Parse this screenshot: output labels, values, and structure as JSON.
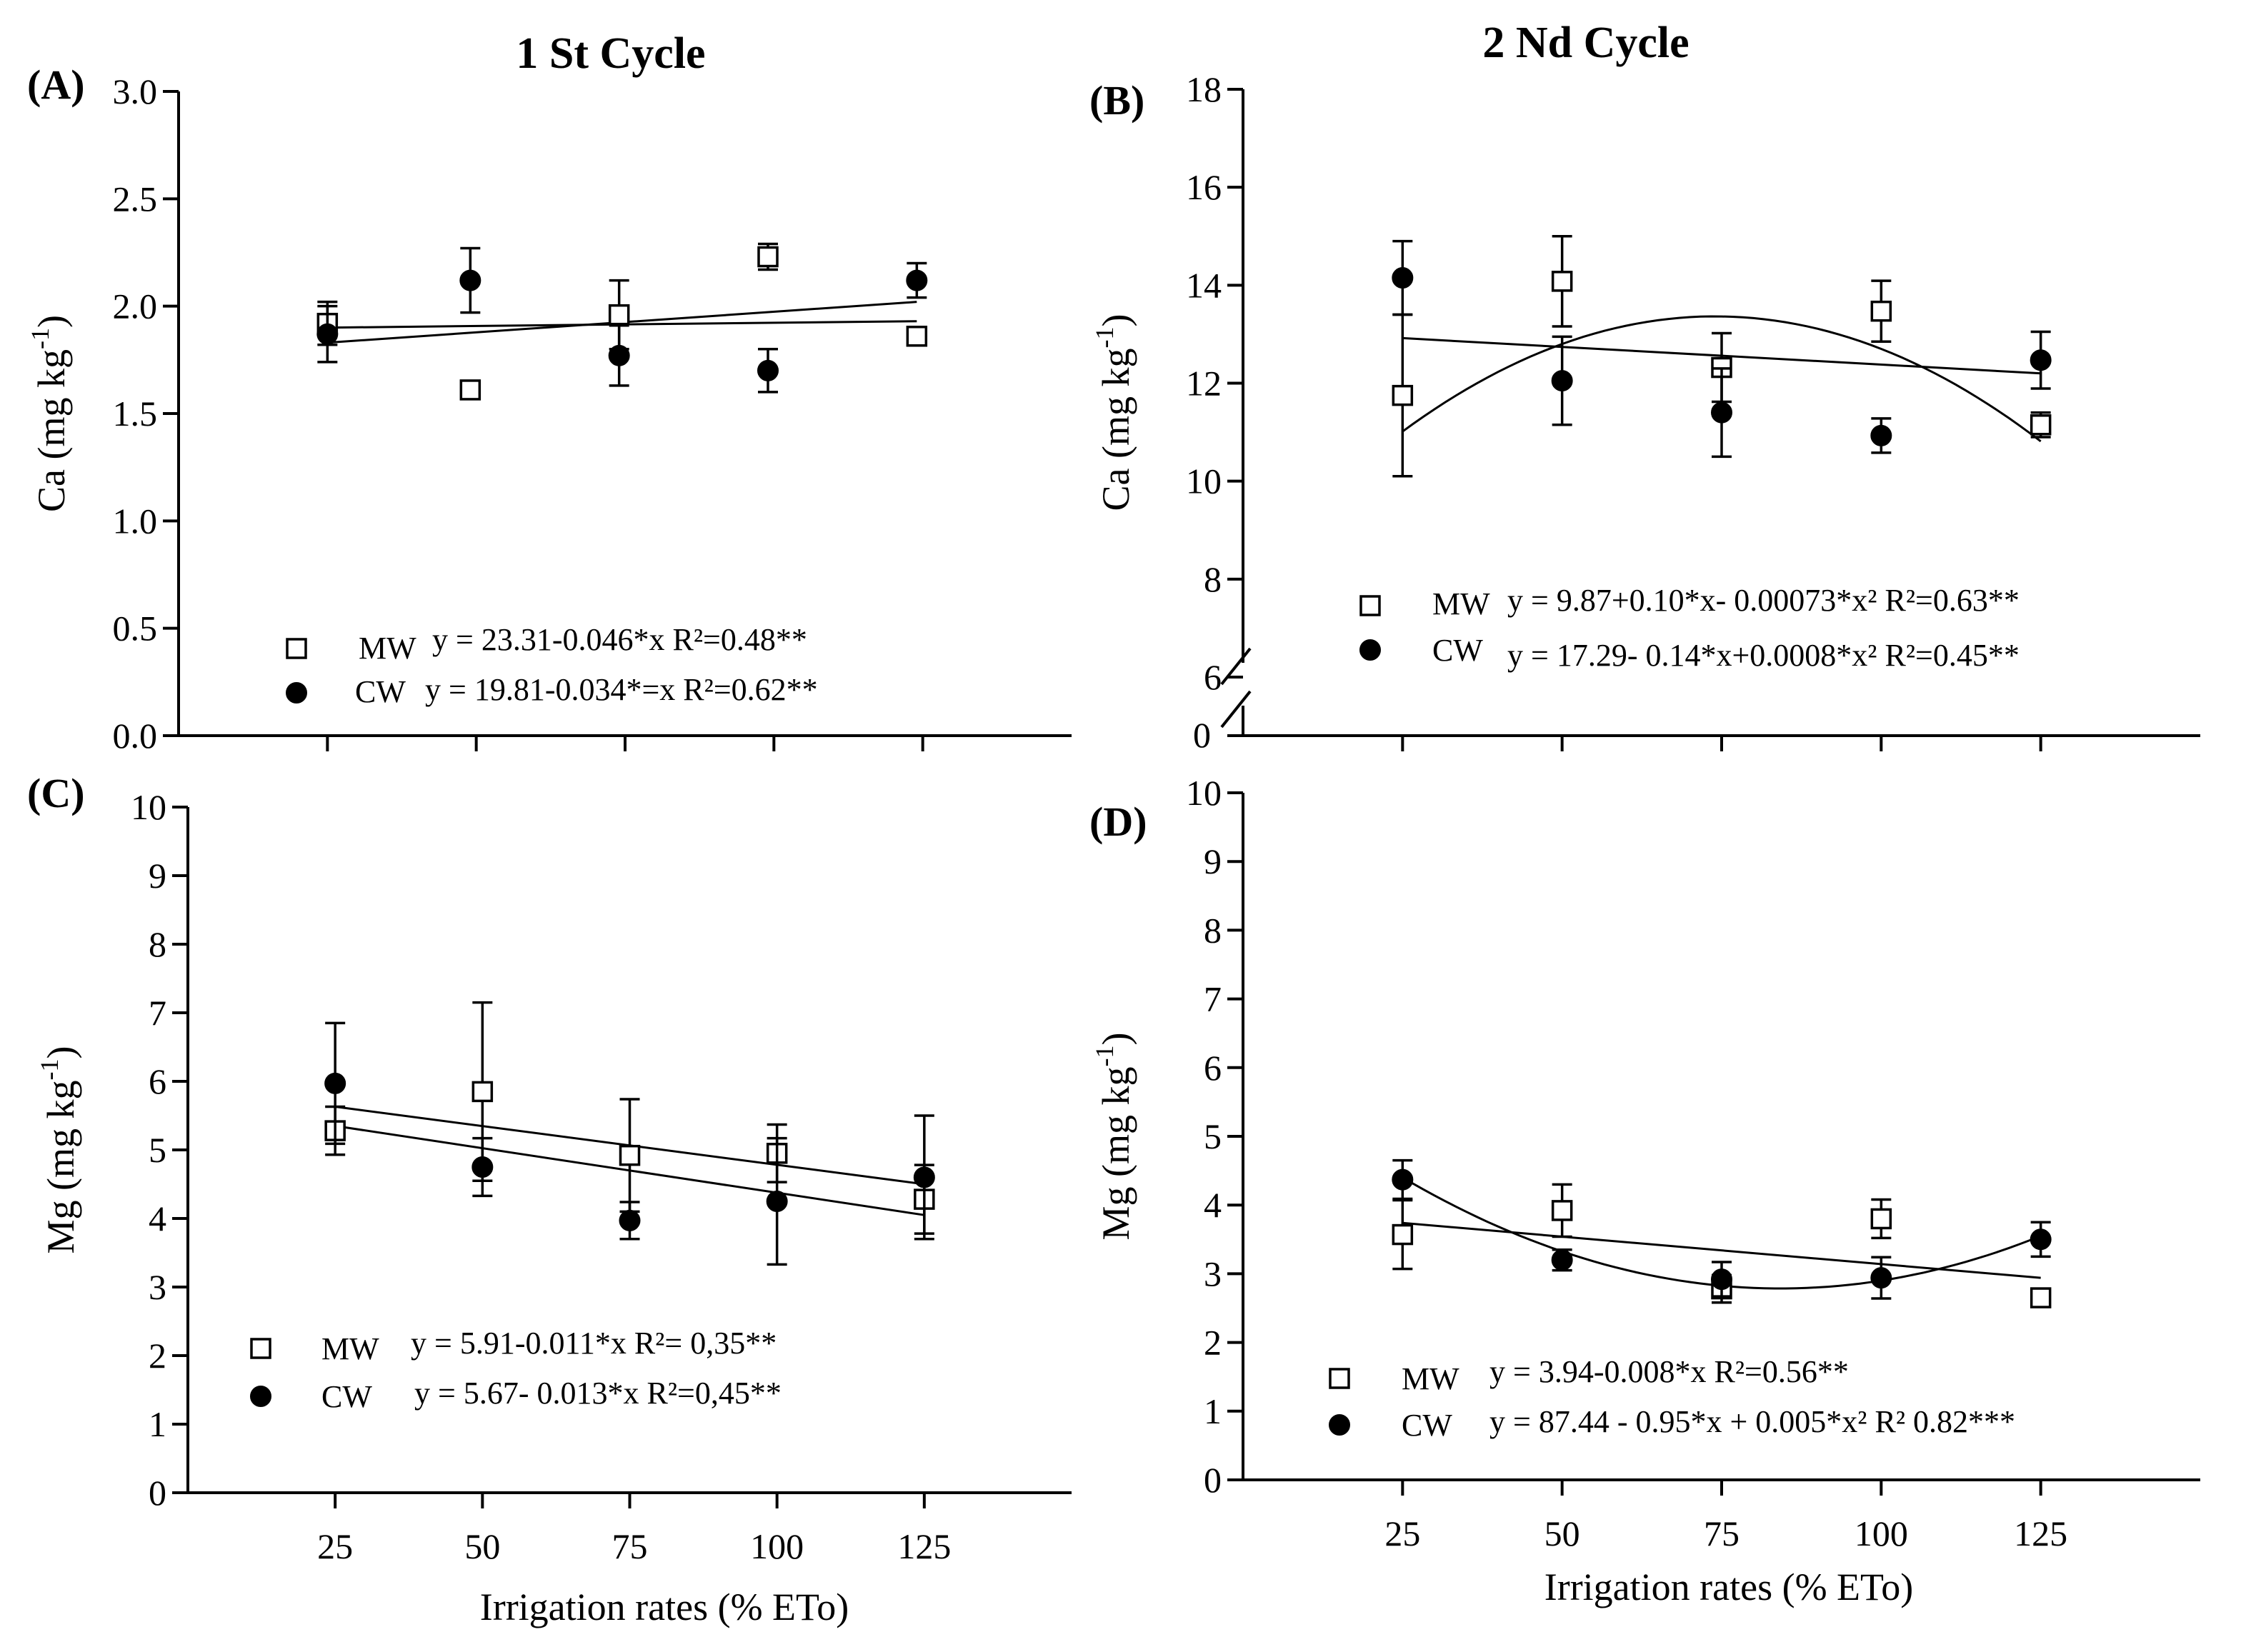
{
  "chart_data": [
    {
      "type": "scatter",
      "panel": "A",
      "panel_label": "(A)",
      "title": "1 St Cycle",
      "ylabel": "Ca (mg kg",
      "ylabel_sup": "-1",
      "ylabel_close": ")",
      "xlabel": "",
      "ylim": [
        0,
        3
      ],
      "xlim": [
        0,
        150
      ],
      "yticks": [
        0,
        0.5,
        1.0,
        1.5,
        2.0,
        2.5,
        3.0
      ],
      "ytick_labels": [
        "0.0",
        "0.5",
        "1.0",
        "1.5",
        "2.0",
        "2.5",
        "3.0"
      ],
      "xticks": [
        25,
        50,
        75,
        100,
        125
      ],
      "xtick_labels": [],
      "series": [
        {
          "name": "MW",
          "marker": "open-square",
          "equation": "y = 23.31-0.046*x R²=0.48**",
          "points": [
            {
              "x": 25,
              "y": 1.92,
              "err": 0.1
            },
            {
              "x": 49,
              "y": 1.61,
              "err": 0
            },
            {
              "x": 74,
              "y": 1.96,
              "err": 0.16
            },
            {
              "x": 99,
              "y": 2.23,
              "err": 0.06
            },
            {
              "x": 124,
              "y": 1.86,
              "err": 0
            }
          ],
          "fit": {
            "kind": "linear",
            "x0": 25,
            "y0": 1.83,
            "x1": 124,
            "y1": 2.02
          }
        },
        {
          "name": "CW",
          "marker": "filled-circle",
          "equation": "y  = 19.81-0.034*=x R²=0.62**",
          "points": [
            {
              "x": 25,
              "y": 1.87,
              "err": 0.13
            },
            {
              "x": 49,
              "y": 2.12,
              "err": 0.15
            },
            {
              "x": 74,
              "y": 1.77,
              "err": 0.14
            },
            {
              "x": 99,
              "y": 1.7,
              "err": 0.1
            },
            {
              "x": 124,
              "y": 2.12,
              "err": 0.08
            }
          ],
          "fit": {
            "kind": "linear",
            "x0": 25,
            "y0": 1.9,
            "x1": 124,
            "y1": 1.93
          }
        }
      ]
    },
    {
      "type": "scatter",
      "panel": "B",
      "panel_label": "(B)",
      "title": "2 Nd Cycle",
      "ylabel": "Ca (mg kg",
      "ylabel_sup": "-1",
      "ylabel_close": ")",
      "xlabel": "",
      "ylim": [
        6,
        18
      ],
      "axis_break": {
        "below": 6,
        "base_label": "0"
      },
      "xlim": [
        0,
        150
      ],
      "yticks": [
        6,
        8,
        10,
        12,
        14,
        16,
        18
      ],
      "ytick_labels": [
        "6",
        "8",
        "10",
        "12",
        "14",
        "16",
        "18"
      ],
      "xticks": [
        25,
        50,
        75,
        100,
        125
      ],
      "xtick_labels": [],
      "series": [
        {
          "name": "MW",
          "marker": "open-square",
          "equation": "y = 9.87+0.10*x- 0.00073*x² R²=0.63**",
          "points": [
            {
              "x": 25,
              "y": 11.75,
              "err": 1.65
            },
            {
              "x": 50,
              "y": 14.08,
              "err": 0.92
            },
            {
              "x": 75,
              "y": 12.32,
              "err": 0.7
            },
            {
              "x": 100,
              "y": 13.47,
              "err": 0.62
            },
            {
              "x": 125,
              "y": 11.15,
              "err": 0.25
            }
          ],
          "fit": {
            "kind": "quadratic",
            "a": 8.0,
            "b": 0.145,
            "c": -0.00098,
            "x0": 25,
            "x1": 125
          }
        },
        {
          "name": "CW",
          "marker": "filled-circle",
          "equation": "y = 17.29- 0.14*x+0.0008*x² R²=0.45**",
          "points": [
            {
              "x": 25,
              "y": 14.15,
              "err": 0.75
            },
            {
              "x": 50,
              "y": 12.05,
              "err": 0.9
            },
            {
              "x": 75,
              "y": 11.4,
              "err": 0.9
            },
            {
              "x": 100,
              "y": 10.93,
              "err": 0.35
            },
            {
              "x": 125,
              "y": 12.47,
              "err": 0.58
            }
          ],
          "fit": {
            "kind": "linear",
            "x0": 25,
            "y0": 12.92,
            "x1": 125,
            "y1": 12.2
          }
        }
      ]
    },
    {
      "type": "scatter",
      "panel": "C",
      "panel_label": "(C)",
      "ylabel": "Mg (mg kg",
      "ylabel_sup": "-1",
      "ylabel_close": ")",
      "xlabel": "Irrigation rates (% ETo)",
      "ylim": [
        0,
        10
      ],
      "xlim": [
        0,
        150
      ],
      "yticks": [
        0,
        1,
        2,
        3,
        4,
        5,
        6,
        7,
        8,
        9,
        10
      ],
      "ytick_labels": [
        "0",
        "1",
        "2",
        "3",
        "4",
        "5",
        "6",
        "7",
        "8",
        "9",
        "10"
      ],
      "xticks": [
        25,
        50,
        75,
        100,
        125
      ],
      "xtick_labels": [
        "25",
        "50",
        "75",
        "100",
        "125"
      ],
      "series": [
        {
          "name": "MW",
          "marker": "open-square",
          "equation": "y = 5.91-0.011*x R²= 0,35**",
          "points": [
            {
              "x": 25,
              "y": 5.28,
              "err": 0.35
            },
            {
              "x": 50,
              "y": 5.85,
              "err": 1.3
            },
            {
              "x": 75,
              "y": 4.92,
              "err": 0.82
            },
            {
              "x": 100,
              "y": 4.95,
              "err": 0.42
            },
            {
              "x": 125,
              "y": 4.28,
              "err": 0.5
            }
          ],
          "fit": {
            "kind": "linear",
            "x0": 25,
            "y0": 5.63,
            "x1": 125,
            "y1": 4.5
          }
        },
        {
          "name": "CW",
          "marker": "filled-circle",
          "equation": "y = 5.67- 0.013*x R²=0,45**",
          "points": [
            {
              "x": 25,
              "y": 5.97,
              "err": 0.88
            },
            {
              "x": 50,
              "y": 4.75,
              "err": 0.42
            },
            {
              "x": 75,
              "y": 3.97,
              "err": 0.27
            },
            {
              "x": 100,
              "y": 4.25,
              "err": 0.92
            },
            {
              "x": 125,
              "y": 4.6,
              "err": 0.9
            }
          ],
          "fit": {
            "kind": "linear",
            "x0": 25,
            "y0": 5.35,
            "x1": 125,
            "y1": 4.05
          }
        }
      ]
    },
    {
      "type": "scatter",
      "panel": "D",
      "panel_label": "(D)",
      "ylabel": "Mg (mg kg",
      "ylabel_sup": "-1",
      "ylabel_close": ")",
      "xlabel": "Irrigation rates (% ETo)",
      "ylim": [
        0,
        10
      ],
      "xlim": [
        0,
        150
      ],
      "yticks": [
        0,
        1,
        2,
        3,
        4,
        5,
        6,
        7,
        8,
        9,
        10
      ],
      "ytick_labels": [
        "0",
        "1",
        "2",
        "3",
        "4",
        "5",
        "6",
        "7",
        "8",
        "9",
        "10"
      ],
      "xticks": [
        25,
        50,
        75,
        100,
        125
      ],
      "xtick_labels": [
        "25",
        "50",
        "75",
        "100",
        "125"
      ],
      "series": [
        {
          "name": "MW",
          "marker": "open-square",
          "equation": "y = 3.94-0.008*x R²=0.56**",
          "points": [
            {
              "x": 25,
              "y": 3.57,
              "err": 0.5
            },
            {
              "x": 50,
              "y": 3.92,
              "err": 0.38
            },
            {
              "x": 75,
              "y": 2.78,
              "err": 0.2
            },
            {
              "x": 100,
              "y": 3.8,
              "err": 0.28
            },
            {
              "x": 125,
              "y": 2.65,
              "err": 0
            }
          ],
          "fit": {
            "kind": "linear",
            "x0": 25,
            "y0": 3.74,
            "x1": 125,
            "y1": 2.94
          }
        },
        {
          "name": "CW",
          "marker": "filled-circle",
          "equation": "y = 87.44 - 0.95*x + 0.005*x² R² 0.82***",
          "points": [
            {
              "x": 25,
              "y": 4.37,
              "err": 0.28
            },
            {
              "x": 50,
              "y": 3.2,
              "err": 0.15
            },
            {
              "x": 75,
              "y": 2.92,
              "err": 0.25
            },
            {
              "x": 100,
              "y": 2.94,
              "err": 0.3
            },
            {
              "x": 125,
              "y": 3.5,
              "err": 0.25
            }
          ],
          "fit": {
            "kind": "quadratic",
            "a": 6.05,
            "b": -0.0775,
            "c": 0.00046,
            "x0": 25,
            "x1": 125
          }
        }
      ]
    }
  ]
}
